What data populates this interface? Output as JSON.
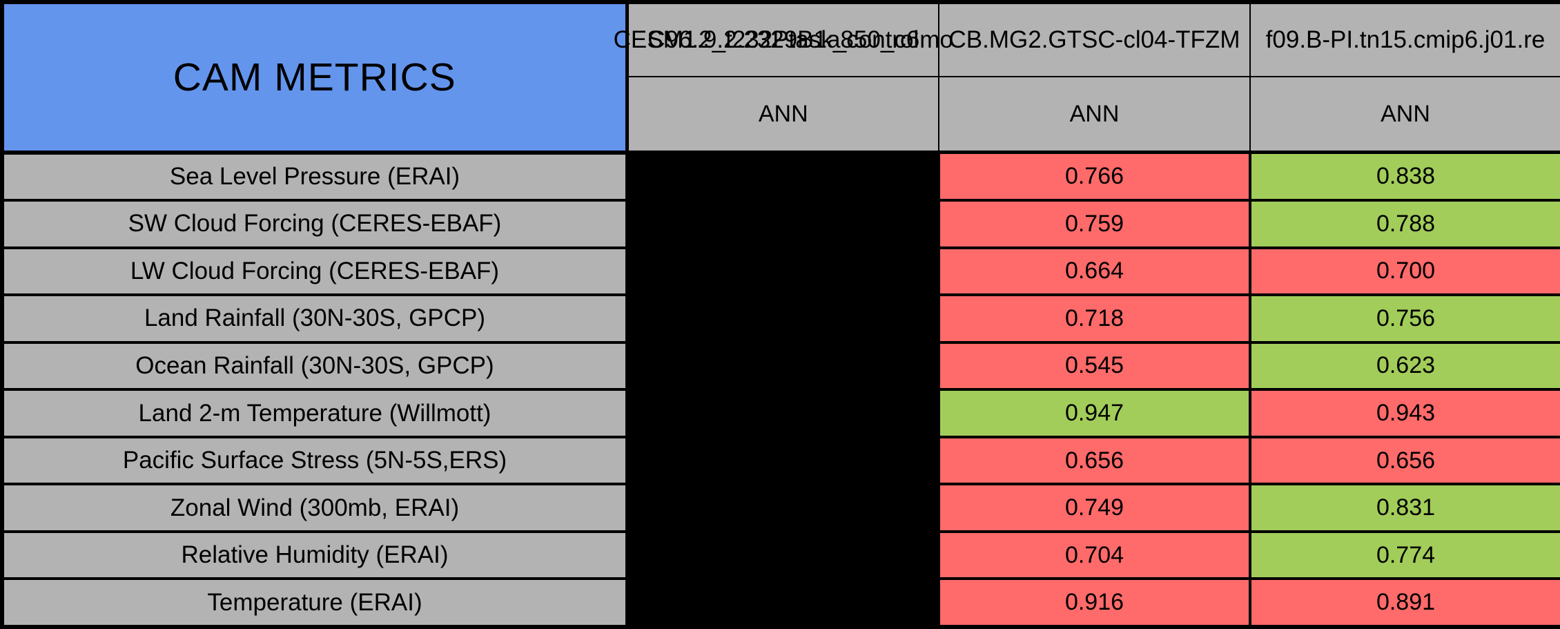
{
  "colors": {
    "title_blue": "#6495ED",
    "label_gray": "#B3B3B3",
    "red": "#FF6A6A",
    "green": "#A2CD5A",
    "black": "#000000",
    "border_black": "#000000"
  },
  "chart_data": {
    "type": "table",
    "title": "CAM METRICS",
    "columns": [
      {
        "header_layers": [
          "CESM1.9.2.2329B1a850_c6mo",
          "C96.2_t232Ptask_control"
        ],
        "subheader": "ANN"
      },
      {
        "header_layers": [
          "CB.MG2.GTSC-cl04-TFZM"
        ],
        "subheader": "ANN"
      },
      {
        "header_layers": [
          "f09.B-PI.tn15.cmip6.j01.re"
        ],
        "subheader": "ANN"
      }
    ],
    "rows": [
      {
        "metric": "Sea Level Pressure (ERAI)",
        "cells": [
          {
            "text": "",
            "color": "black"
          },
          {
            "text": "0.766",
            "color": "red"
          },
          {
            "text": "0.838",
            "color": "green"
          }
        ]
      },
      {
        "metric": "SW Cloud Forcing (CERES-EBAF)",
        "cells": [
          {
            "text": "",
            "color": "black"
          },
          {
            "text": "0.759",
            "color": "red"
          },
          {
            "text": "0.788",
            "color": "green"
          }
        ]
      },
      {
        "metric": "LW Cloud Forcing (CERES-EBAF)",
        "cells": [
          {
            "text": "",
            "color": "black"
          },
          {
            "text": "0.664",
            "color": "red"
          },
          {
            "text": "0.700",
            "color": "red"
          }
        ]
      },
      {
        "metric": "Land Rainfall (30N-30S, GPCP)",
        "cells": [
          {
            "text": "",
            "color": "black"
          },
          {
            "text": "0.718",
            "color": "red"
          },
          {
            "text": "0.756",
            "color": "green"
          }
        ]
      },
      {
        "metric": "Ocean Rainfall (30N-30S, GPCP)",
        "cells": [
          {
            "text": "",
            "color": "black"
          },
          {
            "text": "0.545",
            "color": "red"
          },
          {
            "text": "0.623",
            "color": "green"
          }
        ]
      },
      {
        "metric": "Land 2-m Temperature (Willmott)",
        "cells": [
          {
            "text": "",
            "color": "black"
          },
          {
            "text": "0.947",
            "color": "green"
          },
          {
            "text": "0.943",
            "color": "red"
          }
        ]
      },
      {
        "metric": "Pacific Surface Stress (5N-5S,ERS)",
        "cells": [
          {
            "text": "",
            "color": "black"
          },
          {
            "text": "0.656",
            "color": "red"
          },
          {
            "text": "0.656",
            "color": "red"
          }
        ]
      },
      {
        "metric": "Zonal Wind (300mb, ERAI)",
        "cells": [
          {
            "text": "",
            "color": "black"
          },
          {
            "text": "0.749",
            "color": "red"
          },
          {
            "text": "0.831",
            "color": "green"
          }
        ]
      },
      {
        "metric": "Relative Humidity (ERAI)",
        "cells": [
          {
            "text": "",
            "color": "black"
          },
          {
            "text": "0.704",
            "color": "red"
          },
          {
            "text": "0.774",
            "color": "green"
          }
        ]
      },
      {
        "metric": "Temperature (ERAI)",
        "cells": [
          {
            "text": "",
            "color": "black"
          },
          {
            "text": "0.916",
            "color": "red"
          },
          {
            "text": "0.891",
            "color": "red"
          }
        ]
      }
    ]
  }
}
